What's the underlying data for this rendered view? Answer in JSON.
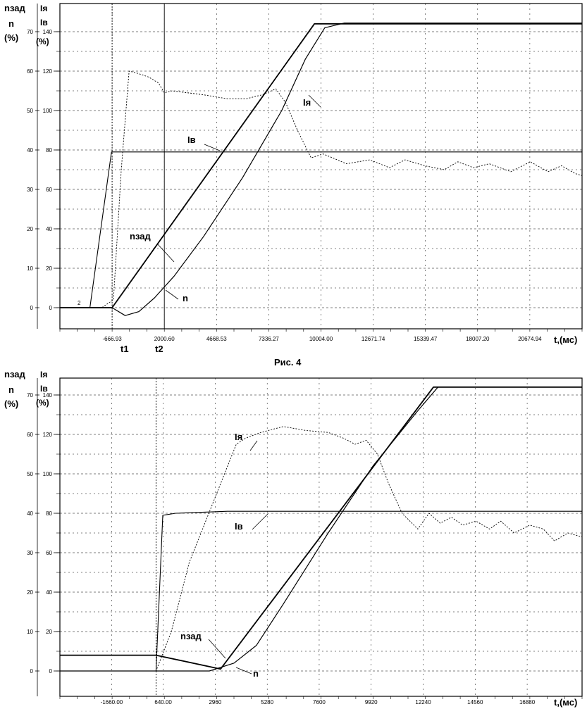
{
  "caption": "Рис. 4",
  "chart_data": [
    {
      "type": "line",
      "ylabels": {
        "speed": [
          "nзад",
          "n",
          "(%)"
        ],
        "armature": [
          "Iя"
        ],
        "field": [
          "Iв",
          "(%)"
        ]
      },
      "yticks_left": [
        "70",
        "60",
        "50",
        "40",
        "30",
        "20",
        "10",
        "0"
      ],
      "yticks_right": [
        "140",
        "120",
        "100",
        "80",
        "60",
        "40",
        "20",
        "0"
      ],
      "xticks": [
        "-666.93",
        "2000.60",
        "4668.53",
        "7336.27",
        "10004.00",
        "12671.74",
        "15339.47",
        "18007.20",
        "20674.94"
      ],
      "xlabel": "t,(мс)",
      "xlim": [
        -3334.67,
        23342.67
      ],
      "ylim_left": [
        -5,
        75
      ],
      "markers": {
        "t1": "t1",
        "t2": "t2",
        "t1_value": -666.93,
        "t2_value": 2000.6,
        "small": "2"
      },
      "series": [
        {
          "name": "nзад",
          "x": [
            -3334,
            -666.93,
            9670,
            23342
          ],
          "y": [
            0,
            0,
            72,
            72
          ]
        },
        {
          "name": "n",
          "x": [
            -3334,
            -666.93,
            0,
            700,
            1500,
            2500,
            4000,
            6000,
            8000,
            9200,
            10200,
            11200,
            23342
          ],
          "y": [
            0,
            0,
            -2,
            -1,
            2.5,
            8,
            18,
            33,
            50,
            63,
            71,
            72.2,
            72.2
          ]
        },
        {
          "name": "Iв",
          "x": [
            -3334,
            -1800,
            -700,
            -400,
            23342
          ],
          "y": [
            0,
            0,
            79,
            79,
            79
          ]
        },
        {
          "name": "Iя",
          "x": [
            -3334,
            -1200,
            -600,
            -200,
            200,
            600,
            1200,
            1700,
            2000,
            2400,
            4000,
            5200,
            6200,
            7000,
            7700,
            8200,
            8800,
            9500,
            10100,
            10600,
            11300,
            12500,
            13500,
            14300,
            15300,
            16300,
            17000,
            17800,
            18600,
            19700,
            20700,
            21600,
            22300,
            23000,
            23342
          ],
          "y": [
            0,
            0,
            4,
            70,
            120,
            119,
            117,
            114,
            109,
            110,
            108,
            106,
            106,
            108,
            111,
            104,
            90,
            76,
            78,
            76,
            73,
            75,
            71,
            75,
            72,
            70,
            74,
            71,
            73,
            69,
            74,
            69,
            72,
            68,
            67
          ]
        }
      ]
    },
    {
      "type": "line",
      "ylabels": {
        "speed": [
          "nзад",
          "n",
          "(%)"
        ],
        "armature": [
          "Iя"
        ],
        "field": [
          "Iв",
          "(%)"
        ]
      },
      "yticks_left": [
        "70",
        "60",
        "50",
        "40",
        "30",
        "20",
        "10",
        "0"
      ],
      "yticks_right": [
        "140",
        "120",
        "100",
        "80",
        "60",
        "40",
        "20",
        "0"
      ],
      "xticks": [
        "-1660.00",
        "640.00",
        "2960",
        "5280",
        "7600",
        "9920",
        "12240",
        "14560",
        "16880"
      ],
      "xlabel": "t,(мс)",
      "xlim": [
        -3970,
        19330
      ],
      "ylim_left": [
        -5,
        75
      ],
      "series": [
        {
          "name": "nзад",
          "x": [
            -3970,
            320,
            3200,
            12700,
            19330
          ],
          "y": [
            4,
            4,
            0.5,
            72,
            72
          ]
        },
        {
          "name": "n",
          "x": [
            -3970,
            700,
            1800,
            2700,
            3800,
            4800,
            6000,
            8000,
            10000,
            12000,
            12900,
            19330
          ],
          "y": [
            0,
            0,
            0,
            0,
            2,
            6.5,
            17,
            35,
            52,
            66,
            72,
            72
          ]
        },
        {
          "name": "Iв",
          "x": [
            -3970,
            320,
            620,
            1200,
            3500,
            6000,
            8000,
            10000,
            12000,
            14000,
            16000,
            19330
          ],
          "y": [
            0,
            0,
            79,
            80,
            81,
            81,
            81,
            81,
            81,
            81,
            81,
            81
          ]
        },
        {
          "name": "Iя",
          "x": [
            -3970,
            320,
            1000,
            1800,
            2500,
            3200,
            3900,
            4300,
            5000,
            6000,
            7000,
            8000,
            8700,
            9200,
            9700,
            10200,
            10700,
            11300,
            12000,
            12500,
            13000,
            13500,
            14000,
            14600,
            15200,
            15700,
            16300,
            17000,
            17600,
            18100,
            18700,
            19330
          ],
          "y": [
            0,
            0,
            20,
            55,
            75,
            95,
            115,
            118,
            121,
            124,
            122,
            121,
            118,
            115,
            117,
            110,
            95,
            80,
            72,
            80,
            75,
            78,
            74,
            76,
            72,
            76,
            70,
            74,
            72,
            66,
            70,
            68
          ]
        }
      ]
    }
  ]
}
